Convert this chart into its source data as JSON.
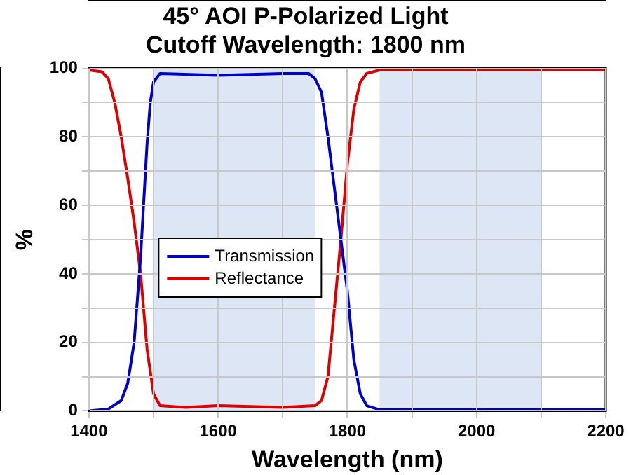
{
  "chart_data": {
    "type": "line",
    "title": "45° AOI P-Polarized Light",
    "subtitle": "Cutoff Wavelength: 1800 nm",
    "xlabel": "Wavelength (nm)",
    "ylabel": "%",
    "xlim": [
      1400,
      2200
    ],
    "xticks": [
      1400,
      {
        "value": 1500,
        "label": null
      },
      1600,
      {
        "value": 1700,
        "label": null
      },
      1800,
      {
        "value": 1900,
        "label": null
      },
      2000,
      {
        "value": 2100,
        "label": null
      },
      2200
    ],
    "ylim": [
      0,
      100
    ],
    "yticks": [
      0,
      {
        "value": 10,
        "label": null
      },
      20,
      {
        "value": 30,
        "label": null
      },
      40,
      {
        "value": 50,
        "label": null
      },
      60,
      {
        "value": 70,
        "label": null
      },
      80,
      {
        "value": 90,
        "label": null
      },
      100
    ],
    "grid": true,
    "legend": "left",
    "marker": "none",
    "line_style": "solid",
    "bands": [
      {
        "axis": "x",
        "from": 1500,
        "to": 1750,
        "color": "#dce6f4"
      },
      {
        "axis": "x",
        "from": 1850,
        "to": 2100,
        "color": "#dce6f4"
      }
    ],
    "series": [
      {
        "name": "Transmission",
        "color": "#0000cc",
        "x": [
          1400,
          1430,
          1450,
          1460,
          1470,
          1480,
          1490,
          1495,
          1500,
          1510,
          1600,
          1700,
          1740,
          1750,
          1760,
          1770,
          1780,
          1790,
          1800,
          1810,
          1820,
          1830,
          1850,
          2200
        ],
        "values": [
          0,
          0.5,
          3,
          8,
          20,
          45,
          78,
          90,
          96,
          98.5,
          98,
          98.5,
          98.5,
          97,
          93,
          80,
          65,
          50,
          35,
          15,
          5,
          1.5,
          0.3,
          0.3
        ]
      },
      {
        "name": "Reflectance",
        "color": "#dd0000",
        "x": [
          1400,
          1420,
          1430,
          1440,
          1450,
          1460,
          1470,
          1480,
          1490,
          1500,
          1510,
          1550,
          1600,
          1700,
          1750,
          1760,
          1770,
          1780,
          1790,
          1800,
          1810,
          1820,
          1830,
          1850,
          2200
        ],
        "values": [
          99.5,
          99,
          97,
          90,
          80,
          68,
          55,
          40,
          18,
          5,
          1.5,
          1,
          1.5,
          1,
          1.5,
          3,
          10,
          30,
          50,
          72,
          88,
          96,
          98.5,
          99.5,
          99.5
        ]
      }
    ]
  }
}
